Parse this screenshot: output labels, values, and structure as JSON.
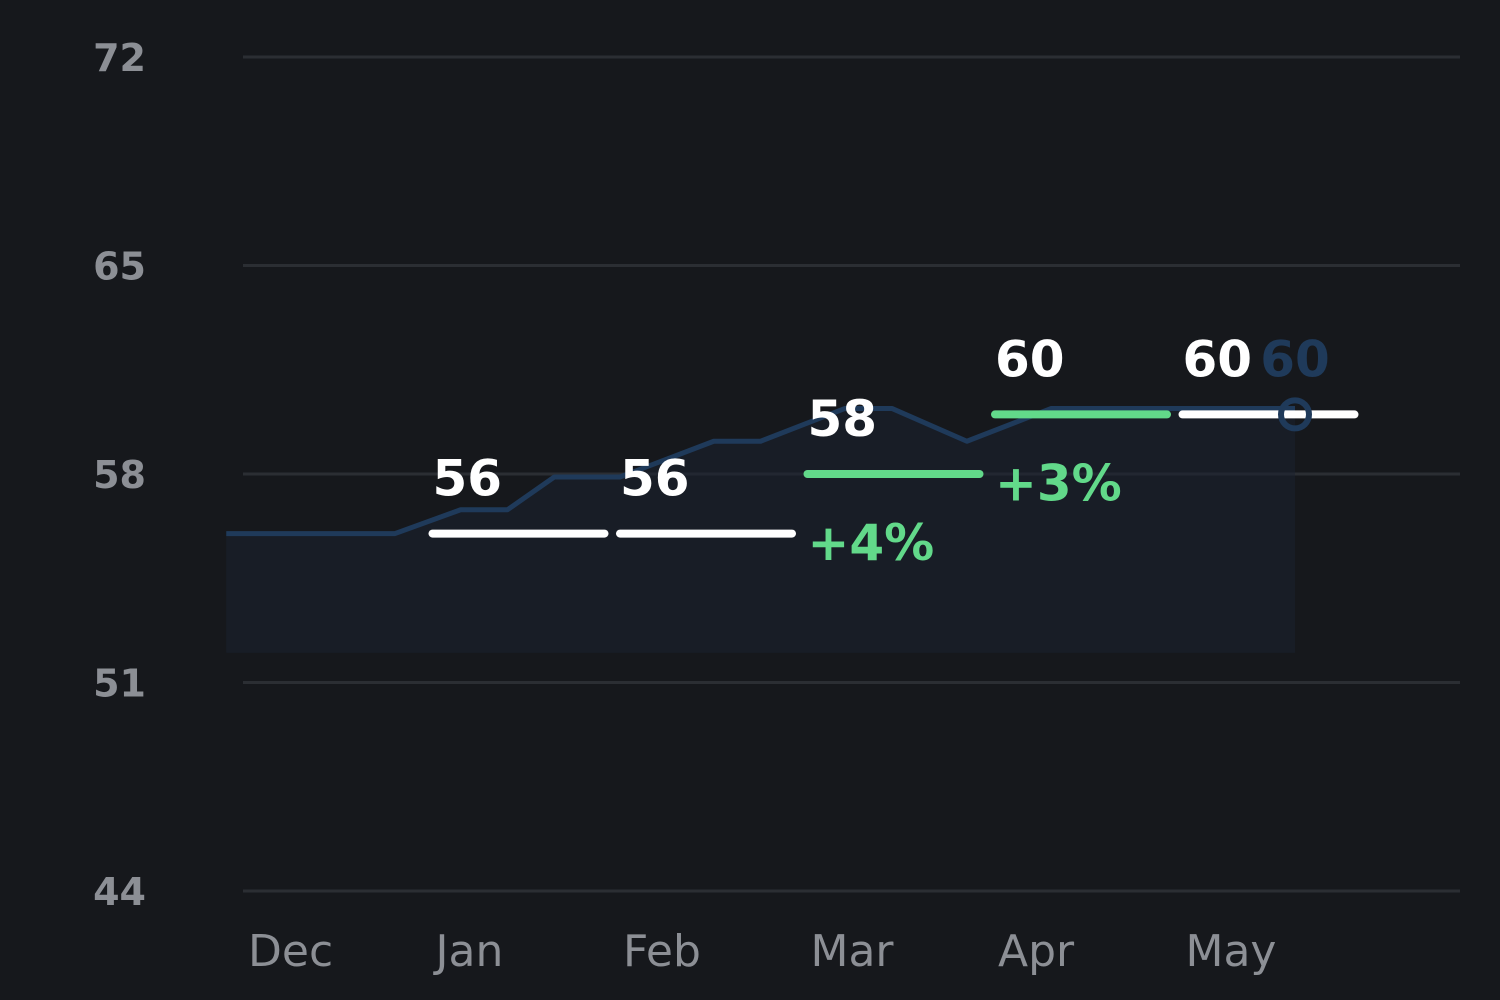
{
  "chart_data": {
    "type": "line",
    "title": "",
    "xlabel": "",
    "ylabel": "",
    "y_ticks": [
      72,
      65,
      58,
      51,
      44
    ],
    "ylim": [
      44,
      72
    ],
    "x_ticks": [
      "Dec",
      "Jan",
      "Feb",
      "Mar",
      "Apr",
      "May"
    ],
    "grid": true,
    "monthly_levels": [
      {
        "month": "Jan",
        "value": 56,
        "label": "56",
        "color": "#ffffff",
        "delta": ""
      },
      {
        "month": "Feb",
        "value": 56,
        "label": "56",
        "color": "#ffffff",
        "delta": ""
      },
      {
        "month": "Mar",
        "value": 58,
        "label": "58",
        "color": "#62d98a",
        "delta": "+4%"
      },
      {
        "month": "Apr",
        "value": 60,
        "label": "60",
        "color": "#62d98a",
        "delta": "+3%"
      },
      {
        "month": "May",
        "value": 60,
        "label": "60",
        "color": "#ffffff",
        "delta": ""
      }
    ],
    "trend_line": {
      "x": [
        -0.1,
        0.25,
        0.8,
        1.15,
        1.4,
        1.65,
        2.0,
        2.5,
        2.75,
        3.2,
        3.45,
        3.85,
        4.3,
        4.7,
        4.95,
        5.3,
        5.6
      ],
      "values": [
        56,
        56,
        56,
        56.8,
        56.8,
        57.9,
        57.9,
        59.1,
        59.1,
        60.2,
        60.2,
        59.1,
        60.2,
        60.2,
        60.2,
        60.2,
        60.2
      ],
      "color": "#1f3a5a"
    },
    "current": {
      "value": 60,
      "label": "60",
      "color": "#1f3a5a"
    },
    "colors": {
      "grid": "#2b2e33",
      "tick": "#8c8f95",
      "positive": "#62d98a",
      "level": "#ffffff",
      "background": "#16181c"
    }
  }
}
